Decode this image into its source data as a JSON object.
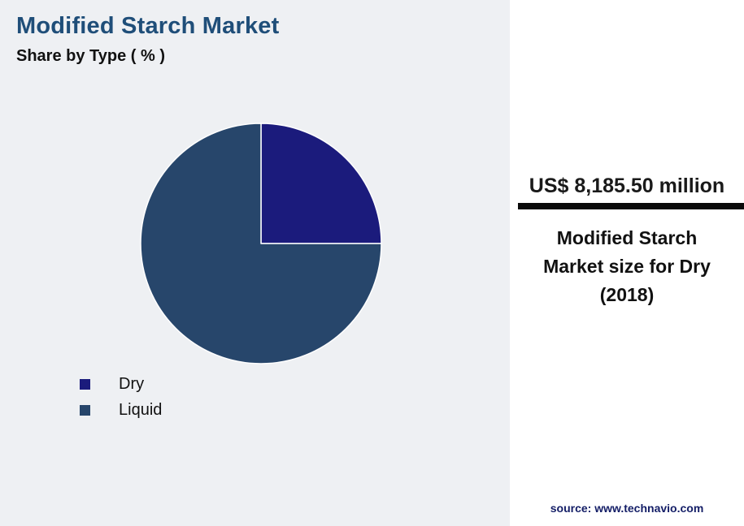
{
  "header": {
    "title": "Modified Starch Market",
    "subtitle": "Share by Type ( % )"
  },
  "chart_data": {
    "type": "pie",
    "title": "Modified Starch Market Share by Type ( % )",
    "categories": [
      "Dry",
      "Liquid"
    ],
    "values": [
      25,
      75
    ],
    "colors": [
      "#1b1b7c",
      "#27466b"
    ],
    "start_angle_deg": 0,
    "direction": "clockwise",
    "legend_position": "bottom-left",
    "slice_border_color": "#ffffff"
  },
  "panel": {
    "headline": "US$ 8,185.50 million",
    "description": "Modified Starch Market size for Dry (2018)",
    "source": "source: www.technavio.com"
  },
  "colors": {
    "background": "#eef0f3",
    "title": "#1f4e79",
    "panel_background": "#ffffff",
    "divider": "#0a0a0a",
    "source_text": "#131d66"
  }
}
